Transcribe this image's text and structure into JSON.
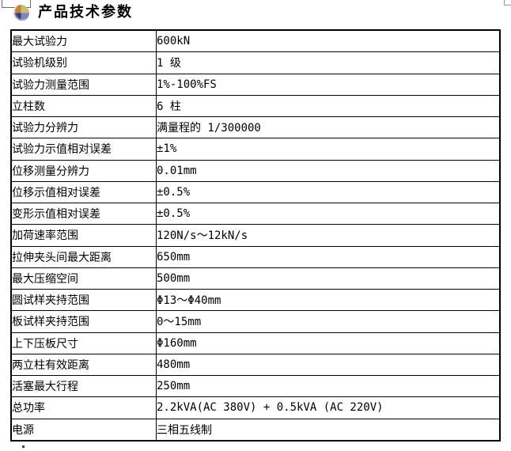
{
  "header": {
    "title": "产品技术参数",
    "icon": "sphere-quadrant-icon"
  },
  "colors": {
    "border": "#000000",
    "icon_top_left": "#c07f3e",
    "icon_top_right": "#c3bd7e",
    "icon_bottom_left": "#2e3c7e",
    "icon_bottom_right": "#8083b6"
  },
  "table": {
    "columns": [
      "parameter",
      "value"
    ],
    "rows": [
      {
        "label": "最大试验力",
        "value": "600kN"
      },
      {
        "label": "试验机级别",
        "value": "1 级"
      },
      {
        "label": "试验力测量范围",
        "value": "1%-100%FS"
      },
      {
        "label": "立柱数",
        "value": "6 柱"
      },
      {
        "label": "试验力分辨力",
        "value": "满量程的 1/300000"
      },
      {
        "label": "试验力示值相对误差",
        "value": "±1%"
      },
      {
        "label": "位移测量分辨力",
        "value": "0.01mm"
      },
      {
        "label": "位移示值相对误差",
        "value": "±0.5%"
      },
      {
        "label": "变形示值相对误差",
        "value": "±0.5%"
      },
      {
        "label": "加荷速率范围",
        "value": "120N/s～12kN/s"
      },
      {
        "label": "拉伸夹头间最大距离",
        "value": "650mm"
      },
      {
        "label": "最大压缩空间",
        "value": "500mm"
      },
      {
        "label": "圆试样夹持范围",
        "value": "Φ13～Φ40mm"
      },
      {
        "label": "板试样夹持范围",
        "value": "0～15mm"
      },
      {
        "label": "上下压板尺寸",
        "value": "Φ160mm"
      },
      {
        "label": "两立柱有效距离",
        "value": "480mm"
      },
      {
        "label": "活塞最大行程",
        "value": "250mm"
      },
      {
        "label": "总功率",
        "value": "2.2kVA(AC 380V) + 0.5kVA (AC 220V)"
      },
      {
        "label": "电源",
        "value": "三相五线制"
      }
    ]
  }
}
